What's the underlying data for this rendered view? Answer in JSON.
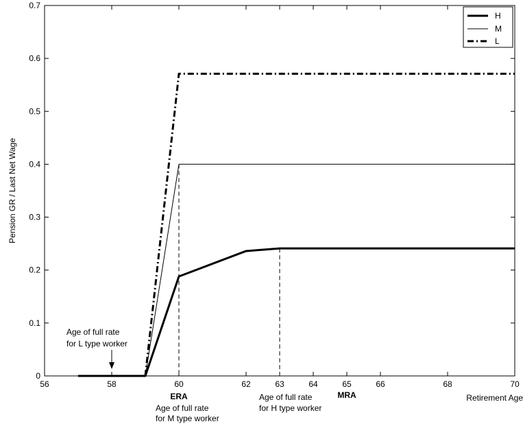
{
  "chart_data": {
    "type": "line",
    "title": "",
    "xlabel": "Retirement Age",
    "ylabel": "Pension GR / Last Net Wage",
    "xlim": [
      56,
      70
    ],
    "ylim": [
      0,
      0.7
    ],
    "x_ticks": [
      56,
      58,
      60,
      62,
      63,
      64,
      65,
      66,
      68,
      70
    ],
    "y_ticks": [
      0,
      0.1,
      0.2,
      0.3,
      0.4,
      0.5,
      0.6,
      0.7
    ],
    "x_tick_labels": [
      "56",
      "58",
      "60",
      "62",
      "63",
      "64",
      "65",
      "66",
      "68",
      "70"
    ],
    "y_tick_labels": [
      "0",
      "0.1",
      "0.2",
      "0.3",
      "0.4",
      "0.5",
      "0.6",
      "0.7"
    ],
    "legend_position": "top-right",
    "series": [
      {
        "name": "H",
        "style": "solid-thick",
        "x": [
          57,
          59,
          60,
          62,
          63,
          70
        ],
        "y": [
          0,
          0,
          0.188,
          0.236,
          0.241,
          0.241
        ]
      },
      {
        "name": "M",
        "style": "solid-thin",
        "x": [
          57,
          59,
          60,
          70
        ],
        "y": [
          0,
          0,
          0.4,
          0.4
        ]
      },
      {
        "name": "L",
        "style": "dash-dot-thick",
        "x": [
          59,
          60,
          70
        ],
        "y": [
          0,
          0.571,
          0.571
        ]
      }
    ],
    "vlines": [
      {
        "x": 60,
        "y": 0.4
      },
      {
        "x": 63,
        "y": 0.241
      }
    ],
    "annotations": {
      "era": {
        "x": 60,
        "text": "ERA"
      },
      "mra": {
        "x": 65,
        "text": "MRA"
      },
      "l_type": {
        "x": 58,
        "line1": "Age of full rate",
        "line2": "for L type worker"
      },
      "m_type": {
        "line1": "Age of full rate",
        "line2": "for M type worker"
      },
      "h_type": {
        "line1": "Age of full rate",
        "line2": "for H type worker"
      }
    }
  }
}
